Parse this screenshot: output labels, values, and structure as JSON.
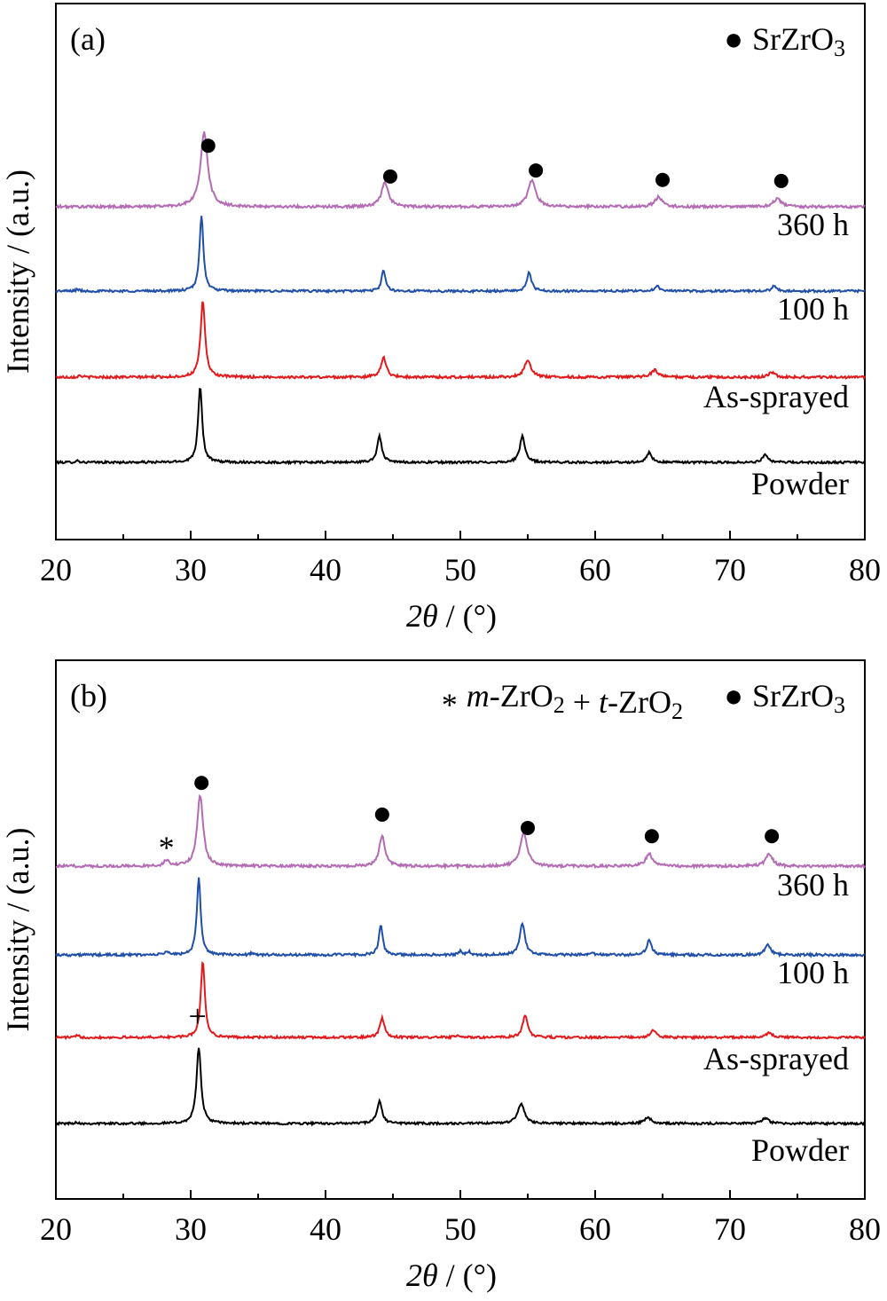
{
  "chart_data": [
    {
      "type": "line",
      "panel_label": "(a)",
      "xlabel_italic": "2θ",
      "xlabel_rest": " / (°)",
      "ylabel": "Intensity / (a.u.)",
      "xlim": [
        20,
        80
      ],
      "xticks": [
        "20",
        "30",
        "40",
        "50",
        "60",
        "70",
        "80"
      ],
      "legend": [
        {
          "marker": "●",
          "parts": [
            {
              "t": "SrZrO"
            },
            {
              "t": "3",
              "sub": true
            }
          ]
        }
      ],
      "series": [
        {
          "name": "Powder",
          "color": "#000000",
          "noise": 2.5,
          "peaks": [
            [
              30.7,
              86,
              0.18
            ],
            [
              44.0,
              30,
              0.2
            ],
            [
              54.6,
              30,
              0.22
            ],
            [
              64.0,
              11,
              0.22
            ],
            [
              72.6,
              9,
              0.22
            ],
            [
              21.6,
              2,
              0.15
            ]
          ]
        },
        {
          "name": "As-sprayed",
          "color": "#e31a1c",
          "noise": 2.8,
          "peaks": [
            [
              30.9,
              86,
              0.2
            ],
            [
              44.3,
              22,
              0.24
            ],
            [
              55.0,
              20,
              0.28
            ],
            [
              64.4,
              8,
              0.3
            ],
            [
              73.1,
              5,
              0.3
            ],
            [
              21.8,
              2,
              0.15
            ]
          ]
        },
        {
          "name": "100 h",
          "color": "#1f4fa8",
          "noise": 2.6,
          "peaks": [
            [
              30.8,
              86,
              0.17
            ],
            [
              44.3,
              24,
              0.17
            ],
            [
              55.1,
              21,
              0.2
            ],
            [
              64.6,
              6,
              0.22
            ],
            [
              73.3,
              6,
              0.22
            ],
            [
              21.6,
              2,
              0.15
            ]
          ]
        },
        {
          "name": "360 h",
          "color": "#b36bb3",
          "noise": 3.0,
          "peaks": [
            [
              31.0,
              84,
              0.32
            ],
            [
              44.4,
              28,
              0.3
            ],
            [
              55.3,
              30,
              0.34
            ],
            [
              64.7,
              11,
              0.34
            ],
            [
              73.5,
              9,
              0.34
            ]
          ]
        }
      ],
      "markers": [
        {
          "x": 31.3,
          "symbol": "●"
        },
        {
          "x": 44.8,
          "symbol": "●"
        },
        {
          "x": 55.6,
          "symbol": "●"
        },
        {
          "x": 65.0,
          "symbol": "●"
        },
        {
          "x": 73.8,
          "symbol": "●"
        }
      ]
    },
    {
      "type": "line",
      "panel_label": "(b)",
      "xlabel_italic": "2θ",
      "xlabel_rest": " / (°)",
      "ylabel": "Intensity / (a.u.)",
      "xlim": [
        20,
        80
      ],
      "xticks": [
        "20",
        "30",
        "40",
        "50",
        "60",
        "70",
        "80"
      ],
      "legend": [
        {
          "marker": "*",
          "parts": [
            {
              "t": "m",
              "italic": true
            },
            {
              "t": "-ZrO"
            },
            {
              "t": "2",
              "sub": true
            },
            {
              "t": " + "
            },
            {
              "t": "t",
              "italic": true
            },
            {
              "t": "-ZrO"
            },
            {
              "t": "2",
              "sub": true
            }
          ]
        },
        {
          "marker": "●",
          "parts": [
            {
              "t": "SrZrO"
            },
            {
              "t": "3",
              "sub": true
            }
          ]
        }
      ],
      "series": [
        {
          "name": "Powder",
          "color": "#000000",
          "noise": 2.5,
          "peaks": [
            [
              30.6,
              86,
              0.2
            ],
            [
              44.0,
              25,
              0.22
            ],
            [
              54.5,
              22,
              0.3
            ],
            [
              63.9,
              7,
              0.3
            ],
            [
              72.6,
              6,
              0.3
            ],
            [
              21.5,
              1.5,
              0.15
            ]
          ]
        },
        {
          "name": "As-sprayed",
          "color": "#e31a1c",
          "noise": 2.6,
          "peaks": [
            [
              30.9,
              86,
              0.18
            ],
            [
              44.2,
              22,
              0.2
            ],
            [
              54.8,
              25,
              0.22
            ],
            [
              64.3,
              8,
              0.24
            ],
            [
              72.9,
              6,
              0.24
            ],
            [
              21.6,
              2,
              0.15
            ],
            [
              49.8,
              2,
              0.2
            ]
          ]
        },
        {
          "name": "100 h",
          "color": "#1f4fa8",
          "noise": 2.8,
          "peaks": [
            [
              30.6,
              86,
              0.17
            ],
            [
              44.1,
              33,
              0.17
            ],
            [
              54.6,
              36,
              0.22
            ],
            [
              64.0,
              16,
              0.22
            ],
            [
              72.8,
              13,
              0.22
            ],
            [
              28.2,
              4,
              0.16
            ],
            [
              34.5,
              2,
              0.15
            ],
            [
              50.0,
              4,
              0.15
            ],
            [
              50.6,
              4,
              0.15
            ],
            [
              59.8,
              2,
              0.15
            ]
          ]
        },
        {
          "name": "360 h",
          "color": "#b36bb3",
          "noise": 3.0,
          "peaks": [
            [
              30.7,
              80,
              0.26
            ],
            [
              44.2,
              34,
              0.26
            ],
            [
              54.7,
              38,
              0.3
            ],
            [
              64.0,
              14,
              0.3
            ],
            [
              72.9,
              14,
              0.3
            ],
            [
              28.2,
              6,
              0.24
            ]
          ]
        }
      ],
      "markers": [
        {
          "x": 30.8,
          "symbol": "●"
        },
        {
          "x": 44.2,
          "symbol": "●"
        },
        {
          "x": 55.0,
          "symbol": "●"
        },
        {
          "x": 64.2,
          "symbol": "●"
        },
        {
          "x": 73.1,
          "symbol": "●"
        },
        {
          "x": 28.2,
          "symbol": "*"
        }
      ],
      "extra_annotations": [
        {
          "x": 30.5,
          "symbol": "+"
        }
      ]
    }
  ]
}
